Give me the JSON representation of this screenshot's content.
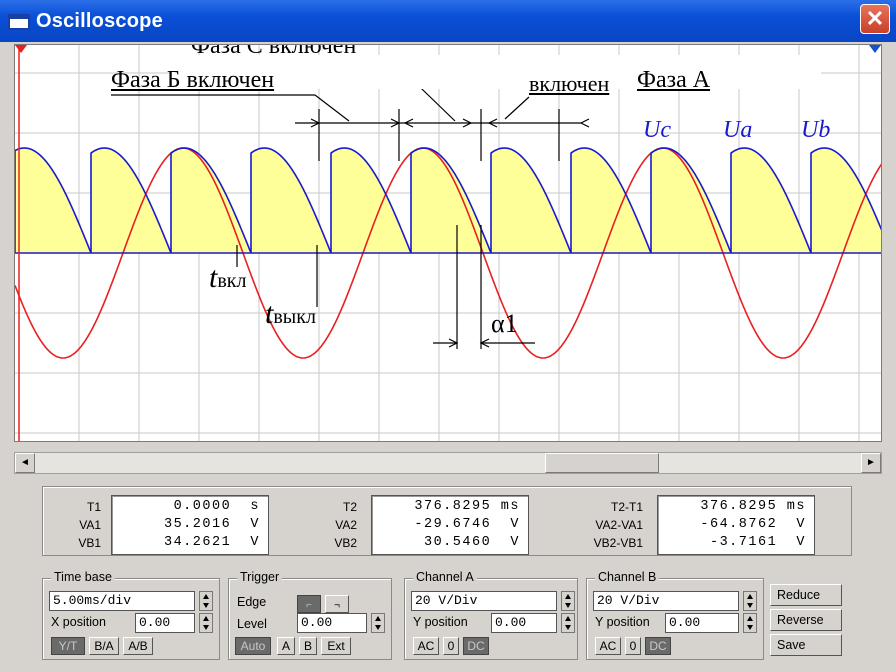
{
  "window": {
    "title": "Oscilloscope",
    "close_glyph": "✕"
  },
  "screen": {
    "annotations": {
      "phase_c": "Фаза С включен",
      "phase_b": "Фаза Б включен",
      "phase_a_word": "включен",
      "phase_a": "Фаза А",
      "t_on_main": "t",
      "t_on_sub": "вкл",
      "t_off_main": "t",
      "t_off_sub": "выкл",
      "alpha": "α1"
    },
    "series_labels": [
      "Uc",
      "Ua",
      "Ub"
    ],
    "colors": {
      "rectified_fill": "#ffff99",
      "rectified_line": "#1a1acc",
      "phase_voltage": "#e82020",
      "grid": "#c8c8c8"
    }
  },
  "scrollbar": {
    "left_arrow": "◄",
    "right_arrow": "►"
  },
  "readout": {
    "t1": {
      "label": "T1",
      "value": "0.0000  s"
    },
    "va1": {
      "label": "VA1",
      "value": "35.2016  V"
    },
    "vb1": {
      "label": "VB1",
      "value": "34.2621  V"
    },
    "t2": {
      "label": "T2",
      "value": "376.8295 ms"
    },
    "va2": {
      "label": "VA2",
      "value": "-29.6746  V"
    },
    "vb2": {
      "label": "VB2",
      "value": "30.5460  V"
    },
    "dt": {
      "label": "T2-T1",
      "value": "376.8295 ms"
    },
    "dva": {
      "label": "VA2-VA1",
      "value": "-64.8762  V"
    },
    "dvb": {
      "label": "VB2-VB1",
      "value": "-3.7161  V"
    }
  },
  "timebase": {
    "title": "Time base",
    "value": "5.00ms/div",
    "xpos_label": "X position",
    "xpos": "0.00",
    "yt": "Y/T",
    "ba": "B/A",
    "ab": "A/B"
  },
  "trigger": {
    "title": "Trigger",
    "edge_label": "Edge",
    "level_label": "Level",
    "level": "0.00",
    "auto": "Auto",
    "a": "A",
    "b": "B",
    "ext": "Ext"
  },
  "channel_a": {
    "title": "Channel A",
    "value": "20 V/Div",
    "ypos_label": "Y position",
    "ypos": "0.00",
    "ac": "AC",
    "zero": "0",
    "dc": "DC"
  },
  "channel_b": {
    "title": "Channel B",
    "value": "20 V/Div",
    "ypos_label": "Y position",
    "ypos": "0.00",
    "ac": "AC",
    "zero": "0",
    "dc": "DC"
  },
  "buttons": {
    "reduce": "Reduce",
    "reverse": "Reverse",
    "save": "Save"
  }
}
